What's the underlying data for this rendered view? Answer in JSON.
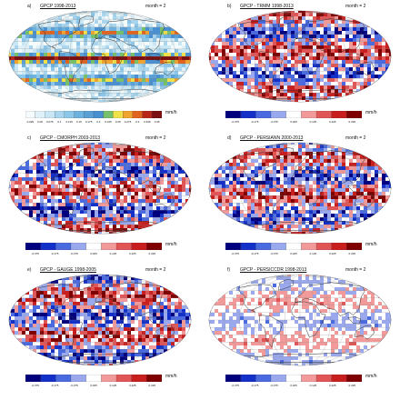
{
  "chart_data": [
    {
      "type": "heatmap",
      "panel_label": "a)",
      "title": "GPCP 1998-2013",
      "month_label": "month = 2",
      "unit": "mm/h",
      "colorbar": "sequential",
      "ticks": [
        "0.025",
        "0.05",
        "0.075",
        "0.1",
        "0.125",
        "0.15",
        "0.175",
        "0.2",
        "0.225",
        "0.25",
        "0.275",
        "0.3",
        "0.325",
        "0.35"
      ]
    },
    {
      "type": "heatmap",
      "panel_label": "b)",
      "title": "GPCP - TRMM 1998-2013",
      "month_label": "month = 2",
      "unit": "mm/h",
      "colorbar": "diverging",
      "ticks": [
        "-0.375",
        "-0.175",
        "-0.075",
        "0.025",
        "0.125",
        "0.225",
        "0.325"
      ]
    },
    {
      "type": "heatmap",
      "panel_label": "c)",
      "title": "GPCP - CMORPH 2003-2013",
      "month_label": "month = 2",
      "unit": "mm/h",
      "colorbar": "diverging",
      "ticks": [
        "-0.375",
        "-0.175",
        "-0.075",
        "0.025",
        "0.125",
        "0.225",
        "0.325"
      ]
    },
    {
      "type": "heatmap",
      "panel_label": "d)",
      "title": "GPCP - PERSIANN 2000-2013",
      "month_label": "month = 2",
      "unit": "mm/h",
      "colorbar": "diverging",
      "ticks": [
        "-0.375",
        "-0.175",
        "-0.075",
        "0.025",
        "0.125",
        "0.225",
        "0.325"
      ]
    },
    {
      "type": "heatmap",
      "panel_label": "e)",
      "title": "GPCP - GAUGE 1998-2005",
      "month_label": "month = 2",
      "unit": "mm/h",
      "colorbar": "diverging",
      "ticks": [
        "-0.375",
        "-0.175",
        "-0.075",
        "0.025",
        "0.125",
        "0.225",
        "0.325"
      ]
    },
    {
      "type": "heatmap",
      "panel_label": "f)",
      "title": "GPCP - PERSICCDR 1998-2013",
      "month_label": "month = 2",
      "unit": "mm/h",
      "colorbar": "diverging",
      "ticks": [
        "-0.375",
        "-0.175",
        "-0.075",
        "0.025",
        "0.125",
        "0.225",
        "0.325"
      ]
    }
  ],
  "colors": {
    "seq": [
      "#f4fbfd",
      "#dff1f8",
      "#c8e6f3",
      "#a9d6ee",
      "#8cc6e8",
      "#6db1de",
      "#5aa0d6",
      "#4a8fd0",
      "#76c06a",
      "#f2e24a",
      "#f0a430",
      "#e0641f",
      "#b8261a",
      "#7a1010"
    ],
    "div": [
      "#00007f",
      "#1330c8",
      "#4a6be0",
      "#9aa9ee",
      "#ffffff",
      "#f29a9a",
      "#e05555",
      "#c81e1e",
      "#7f0000"
    ],
    "coast": "#333333",
    "grid": "#888888"
  }
}
